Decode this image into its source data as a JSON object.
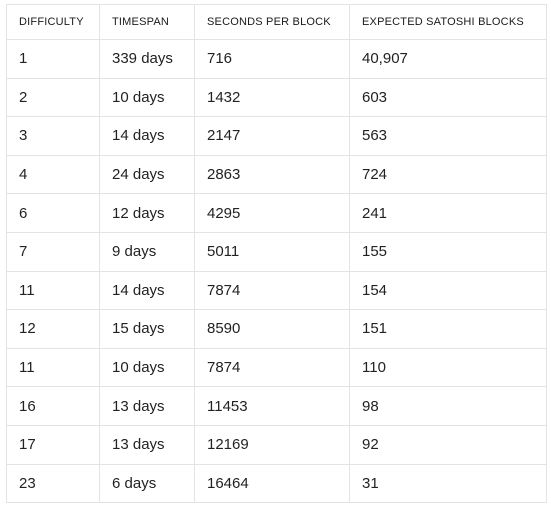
{
  "table": {
    "headers": [
      "DIFFICULTY",
      "TIMESPAN",
      "SECONDS PER BLOCK",
      "EXPECTED SATOSHI BLOCKS"
    ],
    "rows": [
      [
        "1",
        "339 days",
        "716",
        "40,907"
      ],
      [
        "2",
        "10 days",
        "1432",
        "603"
      ],
      [
        "3",
        "14 days",
        "2147",
        "563"
      ],
      [
        "4",
        "24 days",
        "2863",
        "724"
      ],
      [
        "6",
        "12 days",
        "4295",
        "241"
      ],
      [
        "7",
        "9 days",
        "5011",
        "155"
      ],
      [
        "11",
        "14 days",
        "7874",
        "154"
      ],
      [
        "12",
        "15 days",
        "8590",
        "151"
      ],
      [
        "11",
        "10 days",
        "7874",
        "110"
      ],
      [
        "16",
        "13 days",
        "11453",
        "98"
      ],
      [
        "17",
        "13 days",
        "12169",
        "92"
      ],
      [
        "23",
        "6 days",
        "16464",
        "31"
      ]
    ]
  }
}
